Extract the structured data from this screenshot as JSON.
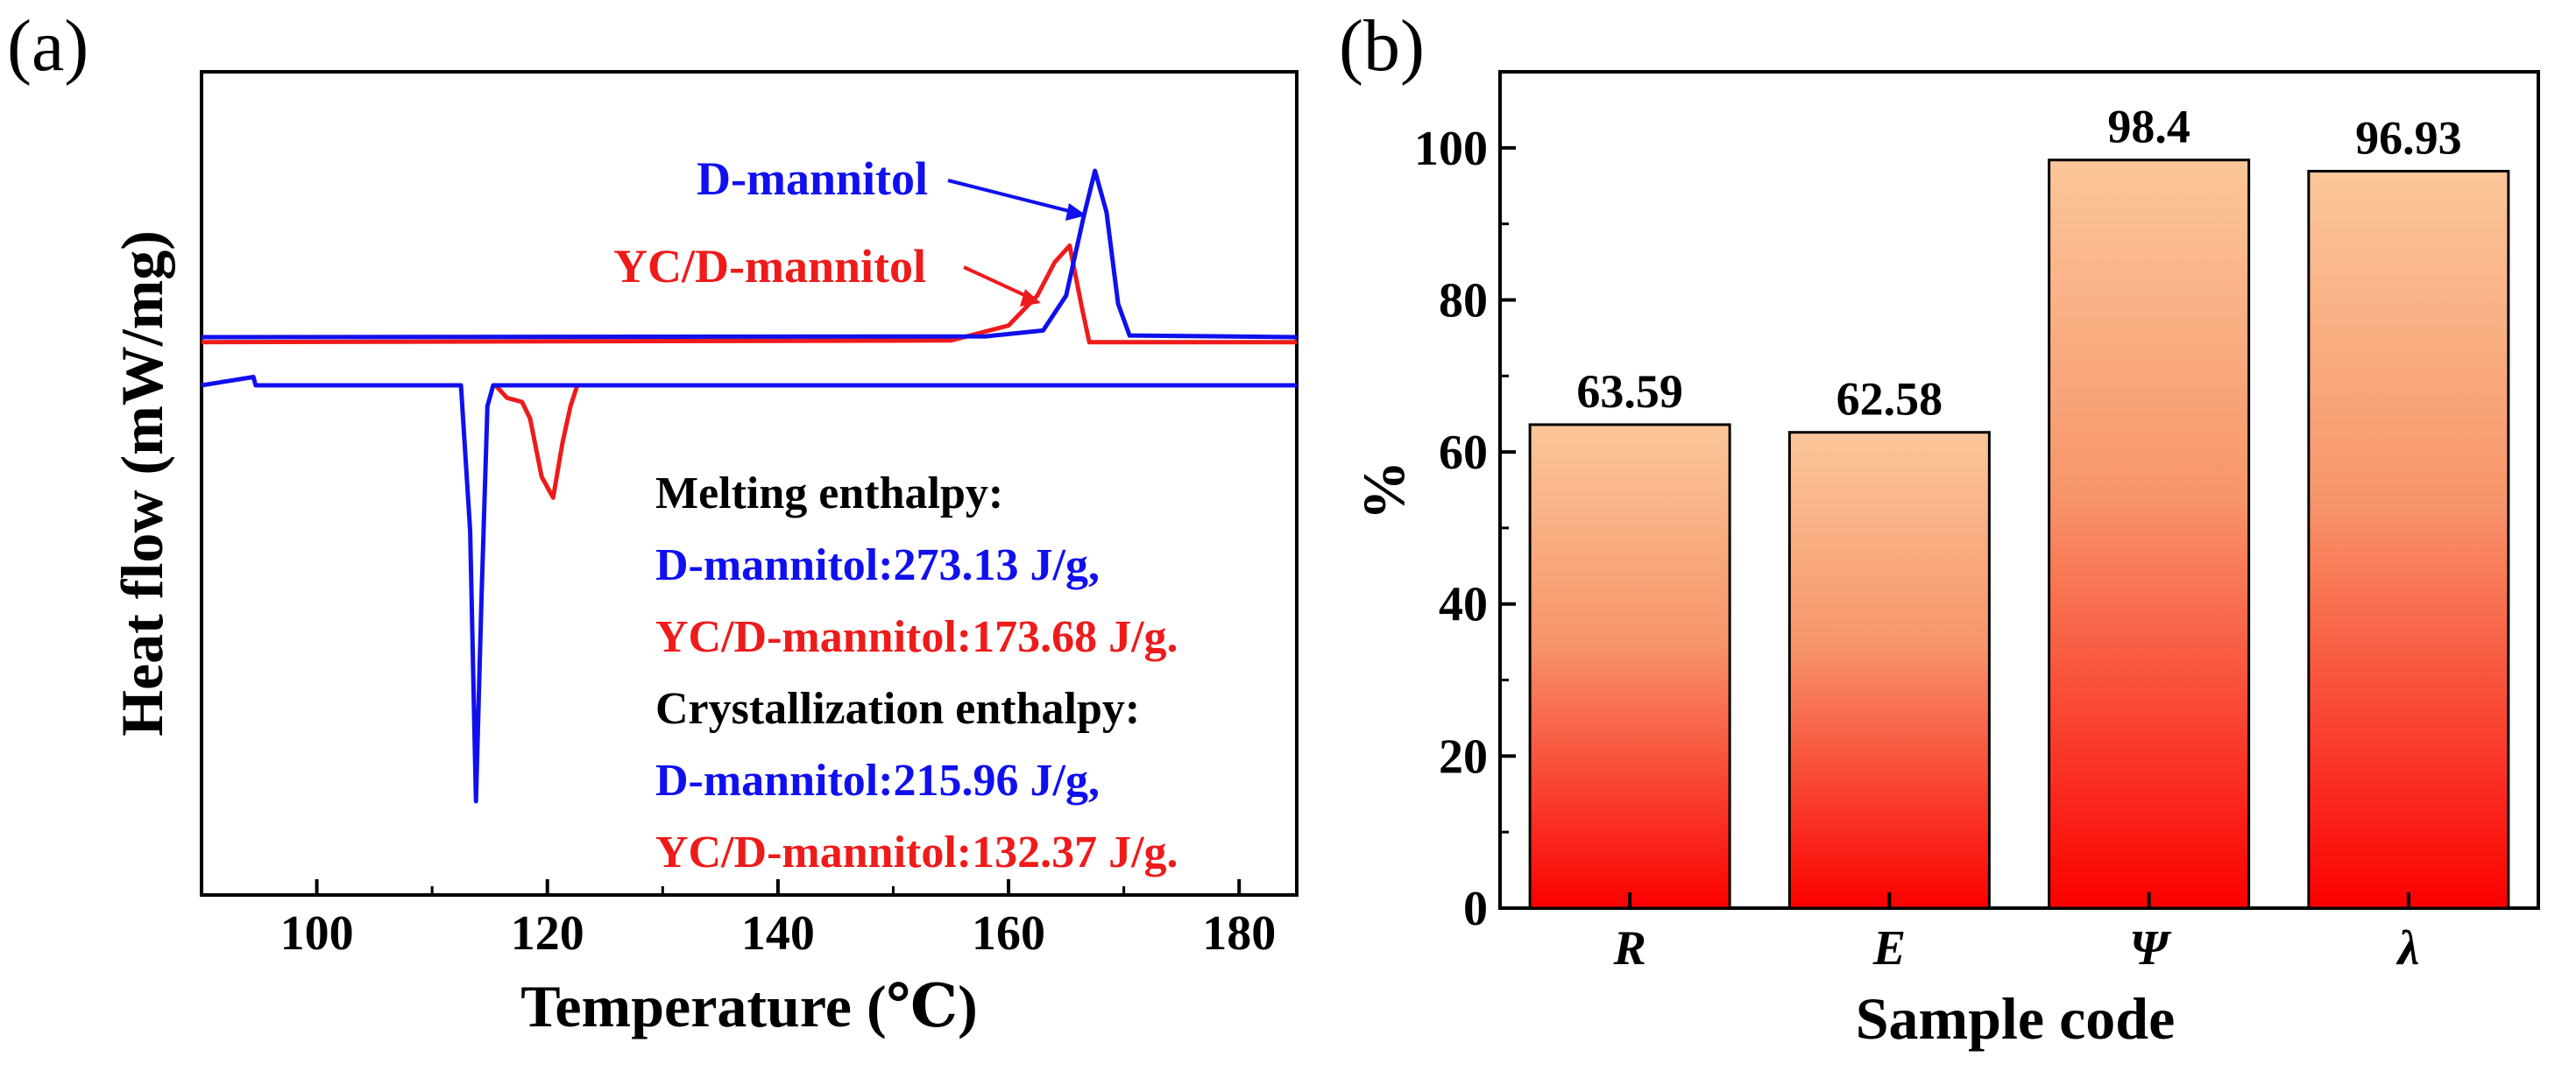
{
  "chart_data": [
    {
      "panel": "(a)",
      "type": "line",
      "xlabel": "Temperature (℃)",
      "ylabel": "Heat flow (mW/mg)",
      "xlim": [
        90,
        185
      ],
      "xticks": [
        100,
        120,
        140,
        160,
        180
      ],
      "series": [
        {
          "name": "D-mannitol",
          "color": "#1010ee",
          "heating": {
            "x": [
              90,
              158,
              163,
              165,
              166.5,
              167.5,
              168.5,
              169.5,
              170.5,
              185
            ],
            "y": [
              0,
              0.005,
              0.04,
              0.25,
              0.72,
              1.0,
              0.75,
              0.2,
              0.01,
              0.0
            ]
          },
          "cooling": {
            "x": [
              90,
              94.5,
              94.7,
              95,
              112.5,
              113.3,
              113.8,
              114.3,
              114.8,
              115.3,
              185
            ],
            "y": [
              0,
              0.02,
              0.0,
              0,
              0,
              -0.35,
              -1.0,
              -0.5,
              -0.05,
              0.0,
              0
            ]
          }
        },
        {
          "name": "YC/D-mannitol",
          "color": "#ee1b1b",
          "heating": {
            "x": [
              90,
              155,
              160,
              162.5,
              164,
              165.3,
              166.3,
              167,
              185
            ],
            "y": [
              -0.03,
              -0.02,
              0.07,
              0.25,
              0.45,
              0.55,
              0.2,
              -0.03,
              -0.03
            ]
          },
          "cooling": {
            "x": [
              115.5,
              116.5,
              117.8,
              118.5,
              119.5,
              120.5,
              121.3,
              122,
              122.6
            ],
            "y": [
              0,
              -0.03,
              -0.04,
              -0.08,
              -0.22,
              -0.27,
              -0.14,
              -0.05,
              0
            ]
          }
        }
      ],
      "annotations": [
        {
          "text": "Melting enthalpy:",
          "color": "#000000"
        },
        {
          "text": "D-mannitol:273.13 J/g,",
          "color": "#1010ee"
        },
        {
          "text": "YC/D-mannitol:173.68 J/g.",
          "color": "#ee1b1b"
        },
        {
          "text": "Crystallization enthalpy:",
          "color": "#000000"
        },
        {
          "text": "D-mannitol:215.96 J/g,",
          "color": "#1010ee"
        },
        {
          "text": "YC/D-mannitol:132.37 J/g.",
          "color": "#ee1b1b"
        }
      ]
    },
    {
      "panel": "(b)",
      "type": "bar",
      "categories": [
        "R",
        "E",
        "Ψ",
        "λ"
      ],
      "values": [
        63.59,
        62.58,
        98.4,
        96.93
      ],
      "value_labels": [
        "63.59",
        "62.58",
        "98.4",
        "96.93"
      ],
      "xlabel": "Sample code",
      "ylabel": "%",
      "ylim": [
        0,
        110
      ],
      "yticks": [
        0,
        20,
        40,
        60,
        80,
        100
      ],
      "bar_gradient": {
        "top": "#fbc699",
        "bottom": "#fb0000"
      }
    }
  ]
}
